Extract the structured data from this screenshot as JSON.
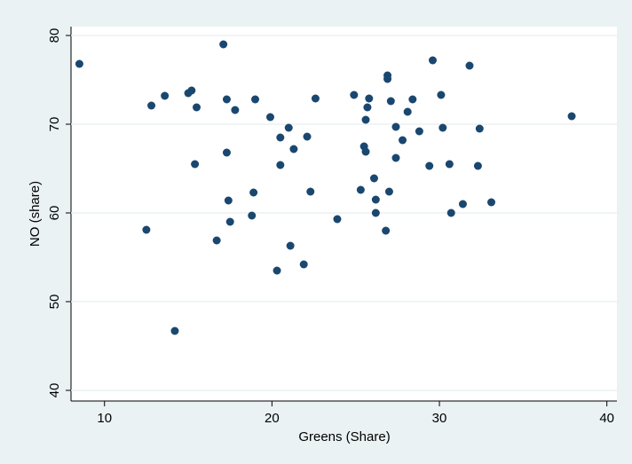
{
  "chart_data": {
    "type": "scatter",
    "x_label": "Greens (Share)",
    "y_label": "NO (share)",
    "x": [
      8.5,
      12.8,
      13.6,
      15.0,
      15.2,
      15.5,
      15.4,
      12.5,
      14.2,
      17.1,
      17.3,
      17.8,
      19.0,
      19.9,
      17.3,
      17.4,
      17.5,
      18.9,
      18.8,
      16.7,
      20.5,
      20.5,
      21.0,
      21.3,
      22.1,
      22.3,
      20.3,
      21.1,
      21.9,
      22.6,
      23.9,
      24.9,
      25.8,
      25.7,
      25.6,
      25.5,
      25.6,
      25.3,
      26.1,
      26.2,
      26.2,
      26.9,
      26.9,
      27.1,
      27.4,
      27.8,
      27.4,
      27.0,
      26.8,
      28.1,
      28.4,
      28.8,
      29.6,
      30.1,
      30.2,
      29.4,
      30.6,
      30.7,
      31.4,
      31.8,
      32.4,
      32.3,
      33.1,
      37.9
    ],
    "series": [
      {
        "color": "#1a476f",
        "values": [
          76.8,
          72.1,
          73.2,
          73.5,
          73.8,
          71.9,
          65.5,
          58.1,
          46.7,
          79.0,
          72.8,
          71.6,
          72.8,
          70.8,
          66.8,
          61.4,
          59.0,
          62.3,
          59.7,
          56.9,
          68.5,
          65.4,
          69.6,
          67.2,
          68.6,
          62.4,
          53.5,
          56.3,
          54.2,
          72.9,
          59.3,
          73.3,
          72.9,
          71.9,
          70.5,
          67.5,
          66.9,
          62.6,
          63.9,
          61.5,
          60.0,
          75.1,
          75.5,
          72.6,
          69.7,
          68.2,
          66.2,
          62.4,
          58.0,
          71.4,
          72.8,
          69.2,
          77.2,
          73.3,
          69.6,
          65.3,
          65.5,
          60.0,
          61.0,
          76.6,
          69.5,
          65.3,
          61.2,
          70.9
        ]
      }
    ],
    "xlim": [
      8,
      40.6
    ],
    "ylim": [
      38.8,
      81
    ],
    "xticks": [
      10,
      20,
      30,
      40
    ],
    "yticks": [
      40,
      50,
      60,
      70,
      80
    ],
    "grid": true
  }
}
